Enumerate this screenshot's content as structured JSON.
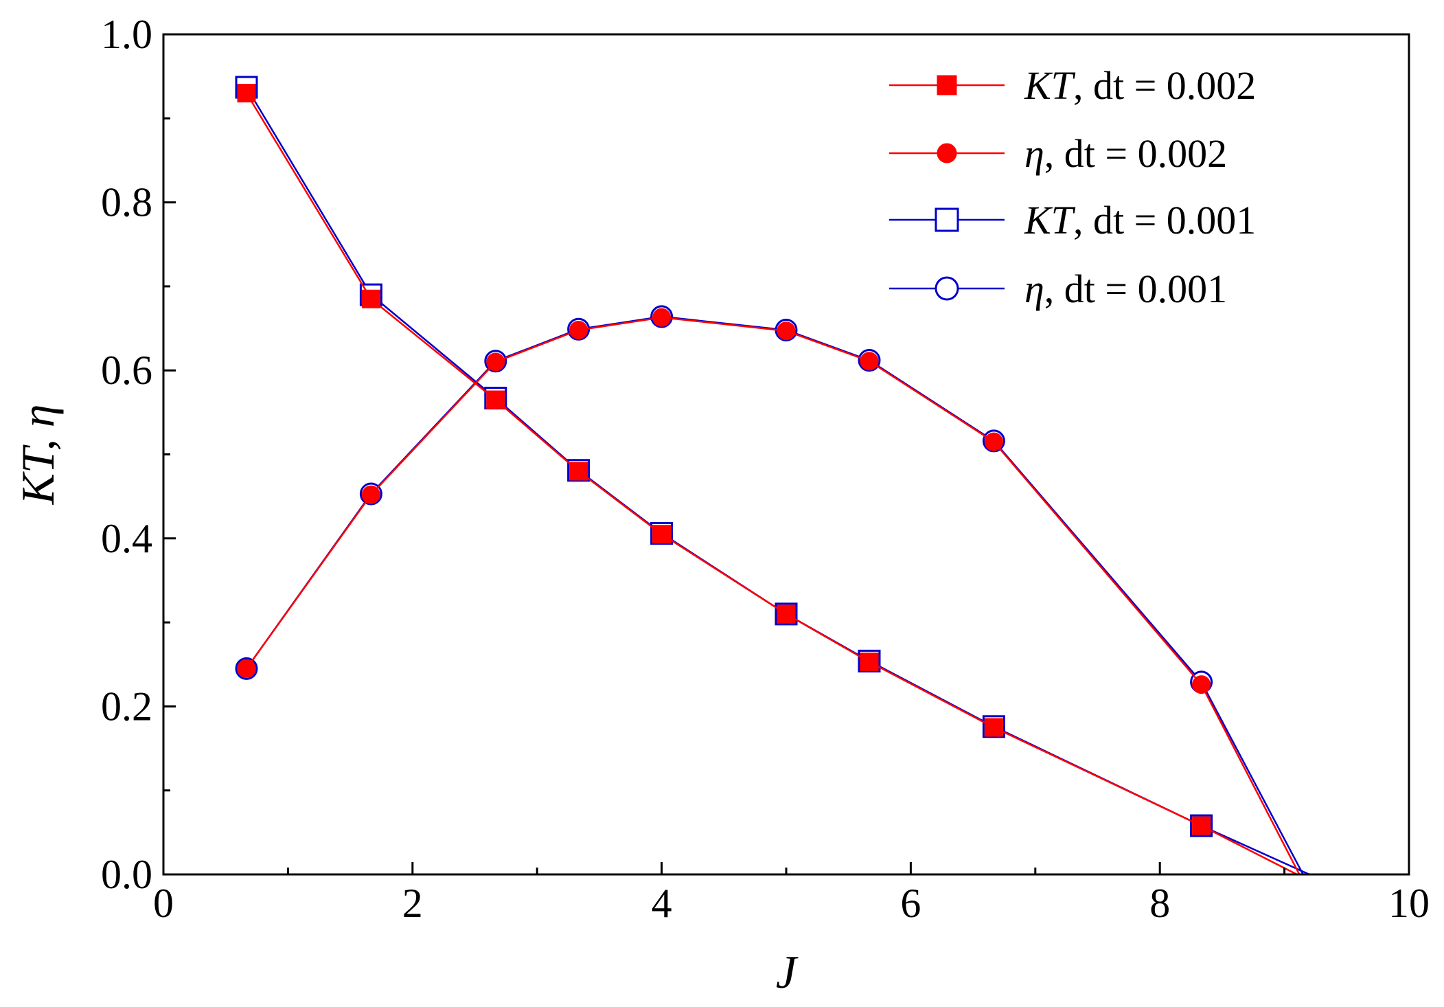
{
  "chart_data": {
    "type": "line",
    "xlabel": "J",
    "ylabel": "KT, η",
    "xlim": [
      0,
      10
    ],
    "ylim": [
      0,
      1.0
    ],
    "x_ticks": [
      0,
      2,
      4,
      6,
      8,
      10
    ],
    "x_tick_labels": [
      "0",
      "2",
      "4",
      "6",
      "8",
      "10"
    ],
    "y_ticks": [
      0,
      0.2,
      0.4,
      0.6,
      0.8,
      1.0
    ],
    "y_tick_labels": [
      "0.0",
      "0.2",
      "0.4",
      "0.6",
      "0.8",
      "1.0"
    ],
    "x_minor_step": 1,
    "y_minor_step": 0.1,
    "grid": false,
    "legend_position": "top-right",
    "series": [
      {
        "name": "KT, dt = 0.002",
        "name_italic": "KT",
        "name_rest": ", dt = 0.002",
        "color": "#ff0000",
        "marker": "square",
        "filled": true,
        "x": [
          0.667,
          1.667,
          2.667,
          3.333,
          4.0,
          5.0,
          5.667,
          6.667,
          8.333,
          9.1
        ],
        "y": [
          0.93,
          0.685,
          0.565,
          0.48,
          0.405,
          0.31,
          0.253,
          0.175,
          0.058,
          0.0
        ],
        "marker_count": 9
      },
      {
        "name": "η, dt = 0.002",
        "name_italic": "η",
        "name_rest": ", dt = 0.002",
        "color": "#ff0000",
        "marker": "circle",
        "filled": true,
        "x": [
          0.667,
          1.667,
          2.667,
          3.333,
          4.0,
          5.0,
          5.667,
          6.667,
          8.333,
          9.12
        ],
        "y": [
          0.245,
          0.452,
          0.61,
          0.648,
          0.663,
          0.647,
          0.611,
          0.515,
          0.226,
          0.0
        ],
        "marker_count": 9
      },
      {
        "name": "KT, dt = 0.001",
        "name_italic": "KT",
        "name_rest": ", dt = 0.001",
        "color": "#0000cc",
        "marker": "square",
        "filled": false,
        "x": [
          0.667,
          1.667,
          2.667,
          3.333,
          4.0,
          5.0,
          5.667,
          6.667,
          8.333,
          9.2
        ],
        "y": [
          0.937,
          0.69,
          0.567,
          0.481,
          0.406,
          0.31,
          0.254,
          0.176,
          0.058,
          0.0
        ],
        "marker_count": 9
      },
      {
        "name": "η, dt = 0.001",
        "name_italic": "η",
        "name_rest": ", dt = 0.001",
        "color": "#0000cc",
        "marker": "circle",
        "filled": false,
        "x": [
          0.667,
          1.667,
          2.667,
          3.333,
          4.0,
          5.0,
          5.667,
          6.667,
          8.333,
          9.15
        ],
        "y": [
          0.245,
          0.453,
          0.611,
          0.649,
          0.664,
          0.648,
          0.612,
          0.516,
          0.229,
          0.0
        ],
        "marker_count": 9
      }
    ]
  }
}
